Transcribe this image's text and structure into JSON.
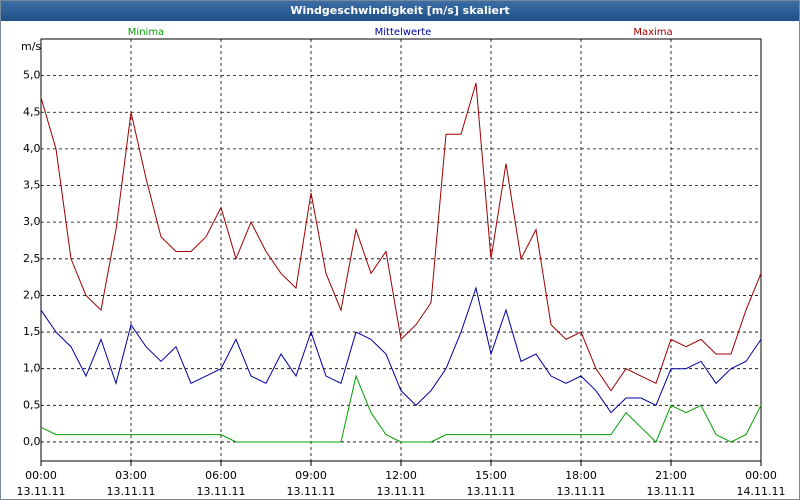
{
  "chart_data": {
    "type": "line",
    "title": "Windgeschwindigkeit [m/s] skaliert",
    "y_label": "m/s",
    "x": [
      0,
      0.5,
      1,
      1.5,
      2,
      2.5,
      3,
      3.5,
      4,
      4.5,
      5,
      5.5,
      6,
      6.5,
      7,
      7.5,
      8,
      8.5,
      9,
      9.5,
      10,
      10.5,
      11,
      11.5,
      12,
      12.5,
      13,
      13.5,
      14,
      14.5,
      15,
      15.5,
      16,
      16.5,
      17,
      17.5,
      18,
      18.5,
      19,
      19.5,
      20,
      20.5,
      21,
      21.5,
      22,
      22.5,
      23,
      23.5,
      24
    ],
    "series": [
      {
        "name": "Minima",
        "color": "#00a000",
        "values": [
          0.2,
          0.1,
          0.1,
          0.1,
          0.1,
          0.1,
          0.1,
          0.1,
          0.1,
          0.1,
          0.1,
          0.1,
          0.1,
          0.0,
          0.0,
          0.0,
          0.0,
          0.0,
          0.0,
          0.0,
          0.0,
          0.9,
          0.4,
          0.1,
          0.0,
          0.0,
          0.0,
          0.1,
          0.1,
          0.1,
          0.1,
          0.1,
          0.1,
          0.1,
          0.1,
          0.1,
          0.1,
          0.1,
          0.1,
          0.4,
          0.2,
          0.0,
          0.5,
          0.4,
          0.5,
          0.1,
          0.0,
          0.1,
          0.5
        ]
      },
      {
        "name": "Mittelwerte",
        "color": "#0000a0",
        "values": [
          1.8,
          1.5,
          1.3,
          0.9,
          1.4,
          0.8,
          1.6,
          1.3,
          1.1,
          1.3,
          0.8,
          0.9,
          1.0,
          1.4,
          0.9,
          0.8,
          1.2,
          0.9,
          1.5,
          0.9,
          0.8,
          1.5,
          1.4,
          1.2,
          0.7,
          0.5,
          0.7,
          1.0,
          1.5,
          2.1,
          1.2,
          1.8,
          1.1,
          1.2,
          0.9,
          0.8,
          0.9,
          0.7,
          0.4,
          0.6,
          0.6,
          0.5,
          1.0,
          1.0,
          1.1,
          0.8,
          1.0,
          1.1,
          1.4
        ]
      },
      {
        "name": "Maxima",
        "color": "#a00000",
        "values": [
          4.7,
          4.0,
          2.5,
          2.0,
          1.8,
          2.9,
          4.5,
          3.6,
          2.8,
          2.6,
          2.6,
          2.8,
          3.2,
          2.5,
          3.0,
          2.6,
          2.3,
          2.1,
          3.4,
          2.3,
          1.8,
          2.9,
          2.3,
          2.6,
          1.4,
          1.6,
          1.9,
          4.2,
          4.2,
          4.9,
          2.5,
          3.8,
          2.5,
          2.9,
          1.6,
          1.4,
          1.5,
          1.0,
          0.7,
          1.0,
          0.9,
          0.8,
          1.4,
          1.3,
          1.4,
          1.2,
          1.2,
          1.8,
          2.3
        ]
      }
    ],
    "xlim": [
      0,
      24
    ],
    "xticks": [
      {
        "value": 0,
        "label": "00:00"
      },
      {
        "value": 3,
        "label": "03:00"
      },
      {
        "value": 6,
        "label": "06:00"
      },
      {
        "value": 9,
        "label": "09:00"
      },
      {
        "value": 12,
        "label": "12:00"
      },
      {
        "value": 15,
        "label": "15:00"
      },
      {
        "value": 18,
        "label": "18:00"
      },
      {
        "value": 21,
        "label": "21:00"
      },
      {
        "value": 24,
        "label": "00:00"
      }
    ],
    "xtick_dates": [
      "13.11.11",
      "13.11.11",
      "13.11.11",
      "13.11.11",
      "13.11.11",
      "13.11.11",
      "13.11.11",
      "13.11.11",
      "14.11.11"
    ],
    "ylim": [
      -0.26,
      5.5
    ],
    "yticks": [
      {
        "value": 0,
        "label": "0,0"
      },
      {
        "value": 0.5,
        "label": "0,5"
      },
      {
        "value": 1,
        "label": "1,0"
      },
      {
        "value": 1.5,
        "label": "1,5"
      },
      {
        "value": 2,
        "label": "2,0"
      },
      {
        "value": 2.5,
        "label": "2,5"
      },
      {
        "value": 3,
        "label": "3,0"
      },
      {
        "value": 3.5,
        "label": "3,5"
      },
      {
        "value": 4,
        "label": "4,0"
      },
      {
        "value": 4.5,
        "label": "4,5"
      },
      {
        "value": 5,
        "label": "5,0"
      }
    ],
    "grid": true
  }
}
